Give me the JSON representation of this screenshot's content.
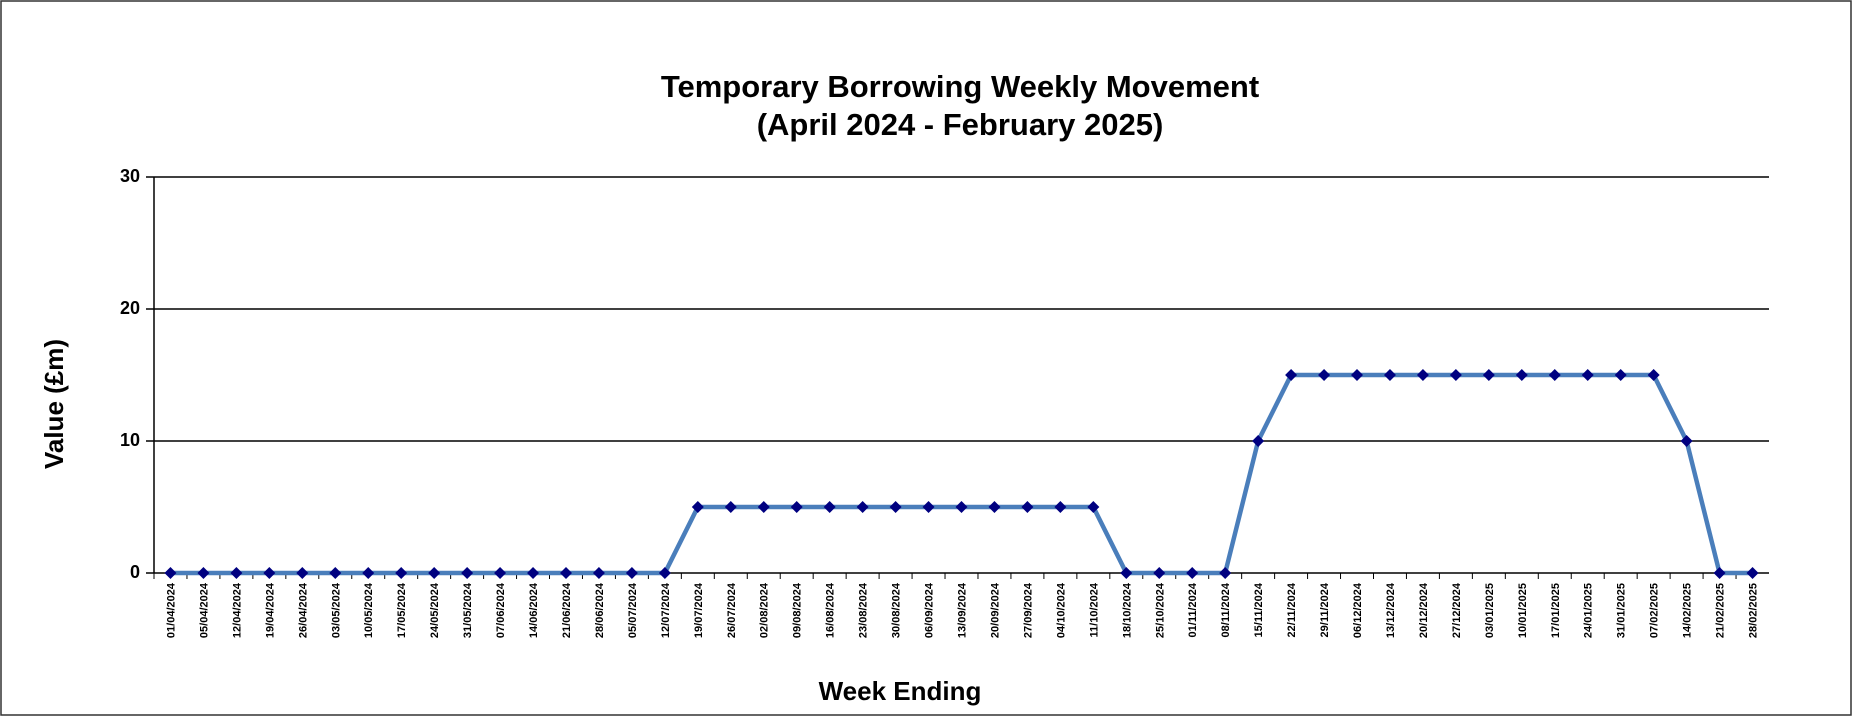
{
  "chart_data": {
    "type": "line",
    "title": "Temporary Borrowing Weekly Movement",
    "subtitle": "(April 2024 - February 2025)",
    "x_label": "Week Ending",
    "y_label": "Value (£m)",
    "categories": [
      "01/04/2024",
      "05/04/2024",
      "12/04/2024",
      "19/04/2024",
      "26/04/2024",
      "03/05/2024",
      "10/05/2024",
      "17/05/2024",
      "24/05/2024",
      "31/05/2024",
      "07/06/2024",
      "14/06/2024",
      "21/06/2024",
      "28/06/2024",
      "05/07/2024",
      "12/07/2024",
      "19/07/2024",
      "26/07/2024",
      "02/08/2024",
      "09/08/2024",
      "16/08/2024",
      "23/08/2024",
      "30/08/2024",
      "06/09/2024",
      "13/09/2024",
      "20/09/2024",
      "27/09/2024",
      "04/10/2024",
      "11/10/2024",
      "18/10/2024",
      "25/10/2024",
      "01/11/2024",
      "08/11/2024",
      "15/11/2024",
      "22/11/2024",
      "29/11/2024",
      "06/12/2024",
      "13/12/2024",
      "20/12/2024",
      "27/12/2024",
      "03/01/2025",
      "10/01/2025",
      "17/01/2025",
      "24/01/2025",
      "31/01/2025",
      "07/02/2025",
      "14/02/2025",
      "21/02/2025",
      "28/02/2025"
    ],
    "values": [
      0,
      0,
      0,
      0,
      0,
      0,
      0,
      0,
      0,
      0,
      0,
      0,
      0,
      0,
      0,
      0,
      5,
      5,
      5,
      5,
      5,
      5,
      5,
      5,
      5,
      5,
      5,
      5,
      5,
      0,
      0,
      0,
      0,
      10,
      15,
      15,
      15,
      15,
      15,
      15,
      15,
      15,
      15,
      15,
      15,
      15,
      10,
      0,
      0
    ],
    "color": "#4a7ebb",
    "marker_color": "#000080",
    "ylim": [
      0,
      30
    ],
    "yticks": [
      0,
      10,
      20,
      30
    ],
    "grid": true
  }
}
